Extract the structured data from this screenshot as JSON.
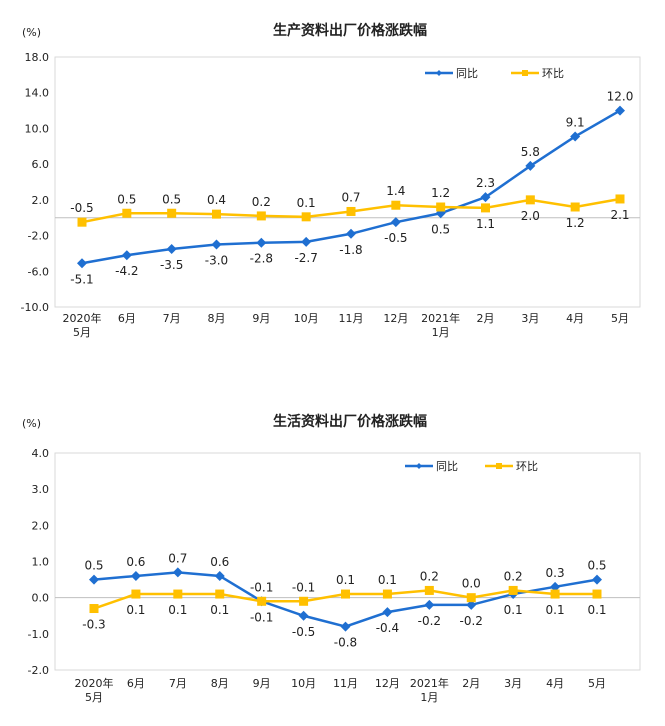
{
  "chart_data": [
    {
      "type": "line",
      "title": "生产资料出厂价格涨跌幅",
      "ylabel": "(%)",
      "ylim": [
        -10,
        18
      ],
      "yticks": [
        "18.0",
        "14.0",
        "10.0",
        "6.0",
        "2.0",
        "-2.0",
        "-6.0",
        "-10.0"
      ],
      "categories": [
        [
          "2020年",
          "5月"
        ],
        [
          "6月"
        ],
        [
          "7月"
        ],
        [
          "8月"
        ],
        [
          "9月"
        ],
        [
          "10月"
        ],
        [
          "11月"
        ],
        [
          "12月"
        ],
        [
          "2021年",
          "1月"
        ],
        [
          "2月"
        ],
        [
          "3月"
        ],
        [
          "4月"
        ],
        [
          "5月"
        ]
      ],
      "series": [
        {
          "name": "同比",
          "color": "#1F6FD1",
          "marker": "diamond",
          "values": [
            -5.1,
            -4.2,
            -3.5,
            -3.0,
            -2.8,
            -2.7,
            -1.8,
            -0.5,
            0.5,
            2.3,
            5.8,
            9.1,
            12.0
          ],
          "labels": [
            "-5.1",
            "-4.2",
            "-3.5",
            "-3.0",
            "-2.8",
            "-2.7",
            "-1.8",
            "-0.5",
            "0.5",
            "2.3",
            "5.8",
            "9.1",
            "12.0"
          ],
          "label_pos": [
            "below",
            "below",
            "below",
            "below",
            "below",
            "below",
            "below",
            "below",
            "below",
            "above",
            "above",
            "above",
            "above"
          ]
        },
        {
          "name": "环比",
          "color": "#FFC000",
          "marker": "square",
          "values": [
            -0.5,
            0.5,
            0.5,
            0.4,
            0.2,
            0.1,
            0.7,
            1.4,
            1.2,
            1.1,
            2.0,
            1.2,
            2.1
          ],
          "labels": [
            "-0.5",
            "0.5",
            "0.5",
            "0.4",
            "0.2",
            "0.1",
            "0.7",
            "1.4",
            "1.2",
            "1.1",
            "2.0",
            "1.2",
            "2.1"
          ],
          "label_pos": [
            "above",
            "above",
            "above",
            "above",
            "above",
            "above",
            "above",
            "above",
            "above",
            "below",
            "below",
            "below",
            "below"
          ]
        }
      ],
      "legend": "top-right"
    },
    {
      "type": "line",
      "title": "生活资料出厂价格涨跌幅",
      "ylabel": "(%)",
      "ylim": [
        -2,
        4
      ],
      "yticks": [
        "4.0",
        "3.0",
        "2.0",
        "1.0",
        "0.0",
        "-1.0",
        "-2.0"
      ],
      "categories": [
        [
          "2020年",
          "5月"
        ],
        [
          "6月"
        ],
        [
          "7月"
        ],
        [
          "8月"
        ],
        [
          "9月"
        ],
        [
          "10月"
        ],
        [
          "11月"
        ],
        [
          "12月"
        ],
        [
          "2021年",
          "1月"
        ],
        [
          "2月"
        ],
        [
          "3月"
        ],
        [
          "4月"
        ],
        [
          "5月"
        ]
      ],
      "series": [
        {
          "name": "同比",
          "color": "#1F6FD1",
          "marker": "diamond",
          "values": [
            0.5,
            0.6,
            0.7,
            0.6,
            -0.1,
            -0.5,
            -0.8,
            -0.4,
            -0.2,
            -0.2,
            0.1,
            0.3,
            0.5
          ],
          "labels": [
            "0.5",
            "0.6",
            "0.7",
            "0.6",
            "-0.1",
            "-0.5",
            "-0.8",
            "-0.4",
            "-0.2",
            "-0.2",
            "0.1",
            "0.3",
            "0.5"
          ],
          "label_pos": [
            "above",
            "above",
            "above",
            "above",
            "below",
            "below",
            "below",
            "below",
            "below",
            "below",
            "below",
            "above",
            "above"
          ]
        },
        {
          "name": "环比",
          "color": "#FFC000",
          "marker": "square",
          "values": [
            -0.3,
            0.1,
            0.1,
            0.1,
            -0.1,
            -0.1,
            0.1,
            0.1,
            0.2,
            0.0,
            0.2,
            0.1,
            0.1
          ],
          "labels": [
            "-0.3",
            "0.1",
            "0.1",
            "0.1",
            "-0.1",
            "-0.1",
            "0.1",
            "0.1",
            "0.2",
            "0.0",
            "0.2",
            "0.1",
            "0.1"
          ],
          "label_pos": [
            "below",
            "below",
            "below",
            "below",
            "above",
            "above",
            "above",
            "above",
            "above",
            "above",
            "above",
            "below",
            "below"
          ]
        }
      ],
      "legend": "top-right"
    }
  ]
}
